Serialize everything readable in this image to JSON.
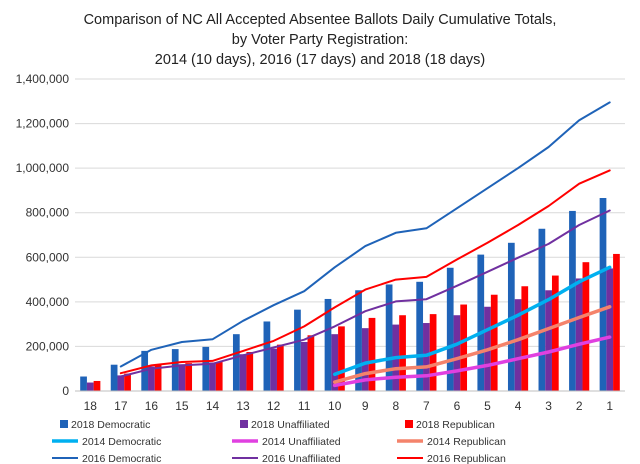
{
  "chart_data": {
    "type": "bar",
    "title_lines": [
      "Comparison of NC All Accepted Absentee Ballots Daily Cumulative Totals,",
      "by Voter Party Registration:",
      "2014 (10 days), 2016 (17 days) and 2018 (18 days)"
    ],
    "xlabel": "",
    "ylabel": "",
    "ylim": [
      0,
      1400000
    ],
    "ytick_values": [
      0,
      200000,
      400000,
      600000,
      800000,
      1000000,
      1200000,
      1400000
    ],
    "ytick_labels": [
      "0",
      "200,000",
      "400,000",
      "600,000",
      "800,000",
      "1,000,000",
      "1,200,000",
      "1,400,000"
    ],
    "categories": [
      "18",
      "17",
      "16",
      "15",
      "14",
      "13",
      "12",
      "11",
      "10",
      "9",
      "8",
      "7",
      "6",
      "5",
      "4",
      "3",
      "2",
      "1"
    ],
    "grid": true,
    "legend_position": "bottom",
    "bar_series": [
      {
        "name": "2018 Democratic",
        "color": "#1f63b8",
        "values": [
          65000,
          118000,
          180000,
          188000,
          198000,
          255000,
          312000,
          365000,
          413000,
          452000,
          478000,
          490000,
          553000,
          612000,
          665000,
          728000,
          808000,
          866000
        ]
      },
      {
        "name": "2018 Unaffiliated",
        "color": "#7030a0",
        "values": [
          38000,
          70000,
          110000,
          120000,
          128000,
          165000,
          190000,
          220000,
          255000,
          282000,
          298000,
          305000,
          340000,
          378000,
          412000,
          452000,
          505000,
          550000
        ]
      },
      {
        "name": "2018 Republican",
        "color": "#ff0000",
        "values": [
          45000,
          78000,
          118000,
          125000,
          130000,
          175000,
          208000,
          250000,
          290000,
          328000,
          340000,
          345000,
          388000,
          432000,
          470000,
          518000,
          578000,
          615000
        ]
      }
    ],
    "line_series": [
      {
        "name": "2014 Democratic",
        "color": "#00b0f0",
        "width": 3.5,
        "start_index": 8,
        "values": [
          75000,
          125000,
          150000,
          160000,
          210000,
          275000,
          340000,
          410000,
          490000,
          555000
        ]
      },
      {
        "name": "2014 Unaffiliated",
        "color": "#e040e0",
        "width": 3.5,
        "start_index": 8,
        "values": [
          25000,
          50000,
          62000,
          68000,
          90000,
          115000,
          145000,
          175000,
          210000,
          242000
        ]
      },
      {
        "name": "2014 Republican",
        "color": "#f4836b",
        "width": 3.5,
        "start_index": 8,
        "values": [
          40000,
          78000,
          100000,
          108000,
          145000,
          185000,
          230000,
          280000,
          330000,
          378000
        ]
      },
      {
        "name": "2016 Democratic",
        "color": "#1f63b8",
        "width": 2,
        "start_index": 1,
        "values": [
          110000,
          185000,
          220000,
          232000,
          315000,
          385000,
          448000,
          555000,
          650000,
          710000,
          730000,
          820000,
          910000,
          1000000,
          1095000,
          1215000,
          1295000
        ]
      },
      {
        "name": "2016 Unaffiliated",
        "color": "#7030a0",
        "width": 2,
        "start_index": 1,
        "values": [
          65000,
          100000,
          115000,
          122000,
          160000,
          195000,
          230000,
          290000,
          358000,
          402000,
          412000,
          472000,
          535000,
          598000,
          660000,
          745000,
          810000
        ]
      },
      {
        "name": "2016 Republican",
        "color": "#ff0000",
        "width": 2,
        "start_index": 1,
        "values": [
          80000,
          115000,
          130000,
          135000,
          180000,
          225000,
          290000,
          375000,
          455000,
          500000,
          512000,
          590000,
          665000,
          745000,
          830000,
          930000,
          990000
        ]
      }
    ],
    "legend": [
      {
        "label": "2018 Democratic",
        "kind": "box",
        "color": "#1f63b8"
      },
      {
        "label": "2018 Unaffiliated",
        "kind": "box",
        "color": "#7030a0"
      },
      {
        "label": "2018 Republican",
        "kind": "box",
        "color": "#ff0000"
      },
      {
        "label": "2014 Democratic",
        "kind": "line",
        "color": "#00b0f0",
        "width": 3.5
      },
      {
        "label": "2014 Unaffiliated",
        "kind": "line",
        "color": "#e040e0",
        "width": 3.5
      },
      {
        "label": "2014 Republican",
        "kind": "line",
        "color": "#f4836b",
        "width": 3.5
      },
      {
        "label": "2016 Democratic",
        "kind": "line",
        "color": "#1f63b8",
        "width": 2
      },
      {
        "label": "2016 Unaffiliated",
        "kind": "line",
        "color": "#7030a0",
        "width": 2
      },
      {
        "label": "2016 Republican",
        "kind": "line",
        "color": "#ff0000",
        "width": 2
      }
    ]
  }
}
